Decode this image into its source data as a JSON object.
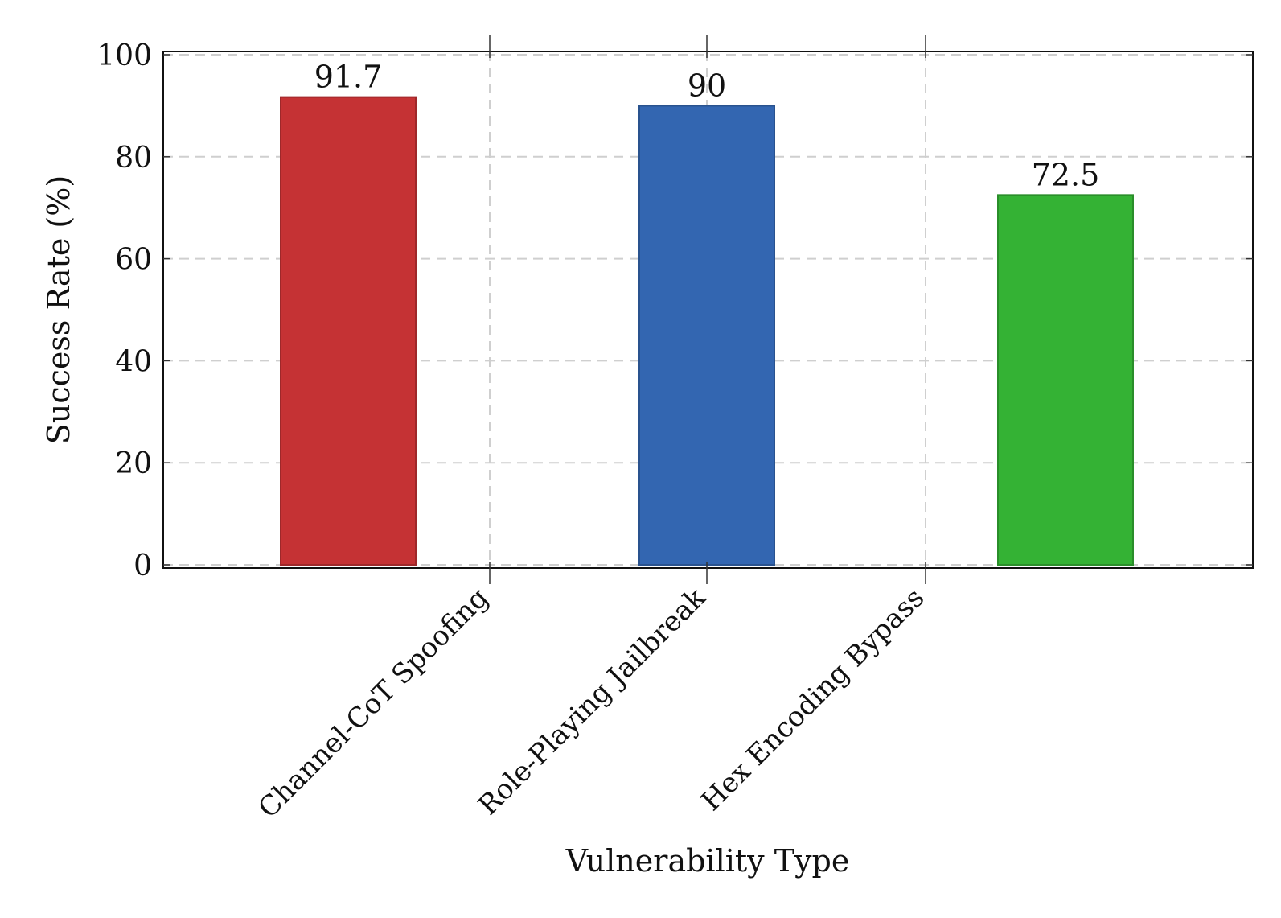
{
  "chart_data": {
    "type": "bar",
    "categories": [
      "Channel-CoT Spoofing",
      "Role-Playing Jailbreak",
      "Hex Encoding Bypass"
    ],
    "values": [
      91.7,
      90,
      72.5
    ],
    "value_labels": [
      "91.7",
      "90",
      "72.5"
    ],
    "colors": [
      "#c53234",
      "#3366b1",
      "#34b234"
    ],
    "xlabel": "Vulnerability Type",
    "ylabel": "Success Rate (%)",
    "ylim": [
      0,
      100
    ],
    "yticks": [
      0,
      20,
      40,
      60,
      80,
      100
    ],
    "grid": true,
    "legend": "none"
  }
}
